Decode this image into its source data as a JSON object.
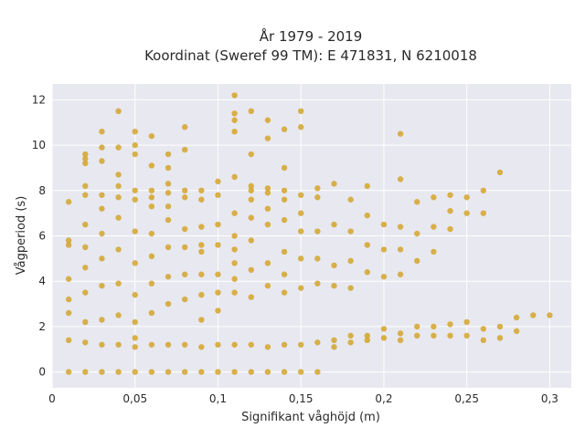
{
  "chart_data": {
    "type": "scatter",
    "title_lines": [
      "År 1979 - 2019",
      "Koordinat (Sweref 99 TM): E 471831, N 6210018"
    ],
    "xlabel": "Signifikant våghöjd (m)",
    "ylabel": "Vågperiod (s)",
    "xlim": [
      0,
      0.313
    ],
    "ylim": [
      -0.7,
      12.7
    ],
    "xticks": [
      0,
      0.05,
      0.1,
      0.15,
      0.2,
      0.25,
      0.3
    ],
    "xtick_labels": [
      "0",
      "0,05",
      "0,1",
      "0,15",
      "0,2",
      "0,25",
      "0,3"
    ],
    "yticks": [
      0,
      2,
      4,
      6,
      8,
      10,
      12
    ],
    "ytick_labels": [
      "0",
      "2",
      "4",
      "6",
      "8",
      "10",
      "12"
    ],
    "grid": true,
    "marker_color": "#D4A52A",
    "background_color": "#E8E8F0",
    "series": [
      {
        "x": [
          0.01,
          0.01,
          0.01,
          0.01,
          0.01,
          0.01,
          0.01,
          0.01,
          0.02,
          0.02,
          0.02,
          0.02,
          0.02,
          0.02,
          0.02,
          0.02,
          0.02,
          0.02,
          0.02,
          0.02,
          0.03,
          0.03,
          0.03,
          0.03,
          0.03,
          0.03,
          0.03,
          0.03,
          0.03,
          0.03,
          0.03,
          0.04,
          0.04,
          0.04,
          0.04,
          0.04,
          0.04,
          0.04,
          0.04,
          0.04,
          0.04,
          0.04,
          0.05,
          0.05,
          0.05,
          0.05,
          0.05,
          0.05,
          0.05,
          0.05,
          0.05,
          0.05,
          0.05,
          0.05,
          0.06,
          0.06,
          0.06,
          0.06,
          0.06,
          0.06,
          0.06,
          0.06,
          0.06,
          0.06,
          0.06,
          0.07,
          0.07,
          0.07,
          0.07,
          0.07,
          0.07,
          0.07,
          0.07,
          0.07,
          0.07,
          0.07,
          0.08,
          0.08,
          0.08,
          0.08,
          0.08,
          0.08,
          0.08,
          0.08,
          0.08,
          0.08,
          0.09,
          0.09,
          0.09,
          0.09,
          0.09,
          0.09,
          0.09,
          0.09,
          0.09,
          0.09,
          0.1,
          0.1,
          0.1,
          0.1,
          0.1,
          0.1,
          0.1,
          0.1,
          0.1,
          0.11,
          0.11,
          0.11,
          0.11,
          0.11,
          0.11,
          0.11,
          0.11,
          0.11,
          0.11,
          0.11,
          0.11,
          0.11,
          0.12,
          0.12,
          0.12,
          0.12,
          0.12,
          0.12,
          0.12,
          0.12,
          0.12,
          0.12,
          0.12,
          0.13,
          0.13,
          0.13,
          0.13,
          0.13,
          0.13,
          0.13,
          0.13,
          0.13,
          0.13,
          0.14,
          0.14,
          0.14,
          0.14,
          0.14,
          0.14,
          0.14,
          0.14,
          0.14,
          0.14,
          0.15,
          0.15,
          0.15,
          0.15,
          0.15,
          0.15,
          0.15,
          0.15,
          0.15,
          0.16,
          0.16,
          0.16,
          0.16,
          0.16,
          0.16,
          0.16,
          0.17,
          0.17,
          0.17,
          0.17,
          0.17,
          0.17,
          0.18,
          0.18,
          0.18,
          0.18,
          0.18,
          0.18,
          0.19,
          0.19,
          0.19,
          0.19,
          0.19,
          0.19,
          0.2,
          0.2,
          0.2,
          0.2,
          0.2,
          0.21,
          0.21,
          0.21,
          0.21,
          0.21,
          0.21,
          0.21,
          0.22,
          0.22,
          0.22,
          0.22,
          0.22,
          0.23,
          0.23,
          0.23,
          0.23,
          0.23,
          0.24,
          0.24,
          0.24,
          0.24,
          0.24,
          0.25,
          0.25,
          0.25,
          0.25,
          0.26,
          0.26,
          0.26,
          0.26,
          0.27,
          0.27,
          0.27,
          0.28,
          0.28,
          0.29,
          0.3
        ],
        "y": [
          0.0,
          1.4,
          2.6,
          3.2,
          4.1,
          5.6,
          5.8,
          7.5,
          0.0,
          1.3,
          2.2,
          3.5,
          4.6,
          5.5,
          6.5,
          7.8,
          8.2,
          9.2,
          9.4,
          9.6,
          0.0,
          1.2,
          2.3,
          3.8,
          5.0,
          6.1,
          7.2,
          7.8,
          9.3,
          9.9,
          10.6,
          0.0,
          1.2,
          2.5,
          3.9,
          5.4,
          6.8,
          7.7,
          8.2,
          8.7,
          9.9,
          11.5,
          0.0,
          1.1,
          1.5,
          2.2,
          3.4,
          4.8,
          6.2,
          7.6,
          8.0,
          9.6,
          10.0,
          10.6,
          0.0,
          1.2,
          2.6,
          3.9,
          5.1,
          6.1,
          7.3,
          7.7,
          8.0,
          9.1,
          10.4,
          0.0,
          1.2,
          3.0,
          4.2,
          5.5,
          6.7,
          7.3,
          7.9,
          8.3,
          9.0,
          9.6,
          0.0,
          1.2,
          3.2,
          4.3,
          5.5,
          6.3,
          7.7,
          8.0,
          9.8,
          10.8,
          0.0,
          1.1,
          2.3,
          3.4,
          4.3,
          5.3,
          5.6,
          6.4,
          7.6,
          8.0,
          0.0,
          1.2,
          2.7,
          3.5,
          4.3,
          5.6,
          6.5,
          7.8,
          8.4,
          0.0,
          1.2,
          3.5,
          4.1,
          4.8,
          5.4,
          6.0,
          7.0,
          8.6,
          10.6,
          11.1,
          11.4,
          12.2,
          0.0,
          1.2,
          3.3,
          4.5,
          5.8,
          6.8,
          7.6,
          8.0,
          8.2,
          9.6,
          11.5,
          0.0,
          1.1,
          3.8,
          4.8,
          6.5,
          7.2,
          7.9,
          8.1,
          10.3,
          11.1,
          0.0,
          1.2,
          3.5,
          4.3,
          5.3,
          6.7,
          7.6,
          8.0,
          9.0,
          10.7,
          0.0,
          1.2,
          3.7,
          5.0,
          6.2,
          7.0,
          7.8,
          10.8,
          11.5,
          0.0,
          1.3,
          3.9,
          5.0,
          6.2,
          7.7,
          8.1,
          1.1,
          1.4,
          3.8,
          4.7,
          6.5,
          8.3,
          1.3,
          1.6,
          3.7,
          4.9,
          6.2,
          7.6,
          1.4,
          1.6,
          4.4,
          5.6,
          6.9,
          8.2,
          1.5,
          1.9,
          4.2,
          5.4,
          6.5,
          1.4,
          1.7,
          4.3,
          5.4,
          6.4,
          8.5,
          10.5,
          1.6,
          2.0,
          4.9,
          6.1,
          7.5,
          1.6,
          2.0,
          5.3,
          6.4,
          7.7,
          1.6,
          2.1,
          6.3,
          7.1,
          7.8,
          1.6,
          2.2,
          7.0,
          7.7,
          1.4,
          1.9,
          7.0,
          8.0,
          1.5,
          2.0,
          8.8,
          1.8,
          2.4,
          2.5,
          2.5
        ]
      }
    ]
  }
}
